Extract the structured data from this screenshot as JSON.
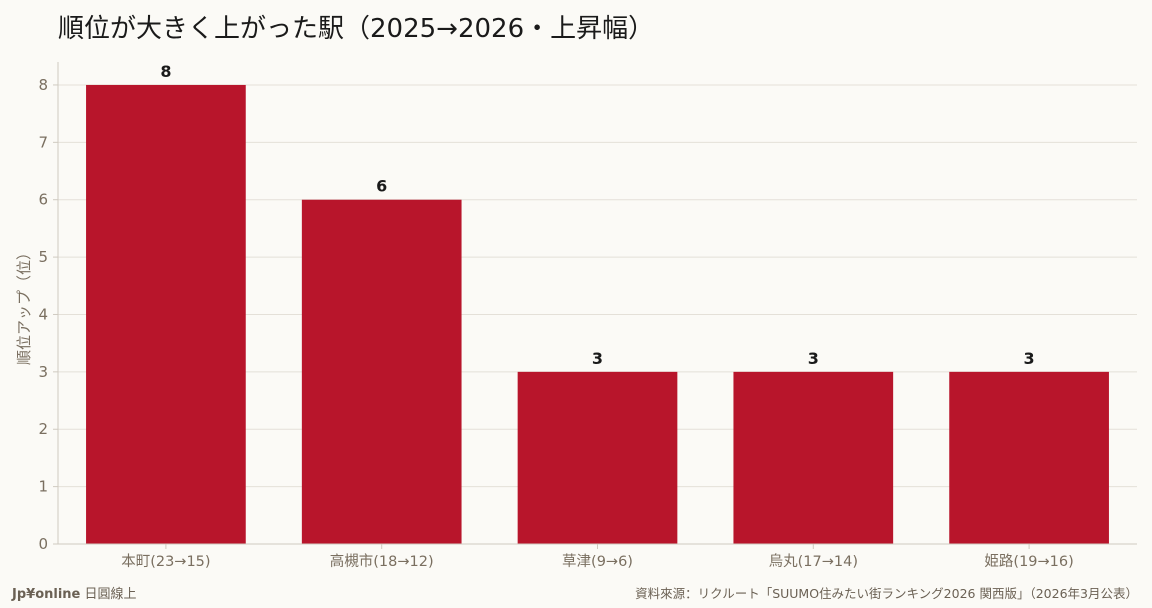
{
  "chart_data": {
    "type": "bar",
    "title": "順位が大きく上がった駅（2025→2026・上昇幅）",
    "xlabel": "",
    "ylabel": "順位アップ（位）",
    "categories": [
      "本町(23→15)",
      "高槻市(18→12)",
      "草津(9→6)",
      "烏丸(17→14)",
      "姫路(19→16)"
    ],
    "values": [
      8,
      6,
      3,
      3,
      3
    ],
    "ylim": [
      0,
      8.4
    ],
    "yticks": [
      0,
      1,
      2,
      3,
      4,
      5,
      6,
      7,
      8
    ],
    "grid": true,
    "legend": "none",
    "bar_color": "#b8152b"
  },
  "footer": {
    "brand": "Jp¥online",
    "brand_suffix": "日圓線上",
    "source": "資料來源：リクルート「SUUMO住みたい街ランキング2026 関西版」（2026年3月公表）"
  }
}
